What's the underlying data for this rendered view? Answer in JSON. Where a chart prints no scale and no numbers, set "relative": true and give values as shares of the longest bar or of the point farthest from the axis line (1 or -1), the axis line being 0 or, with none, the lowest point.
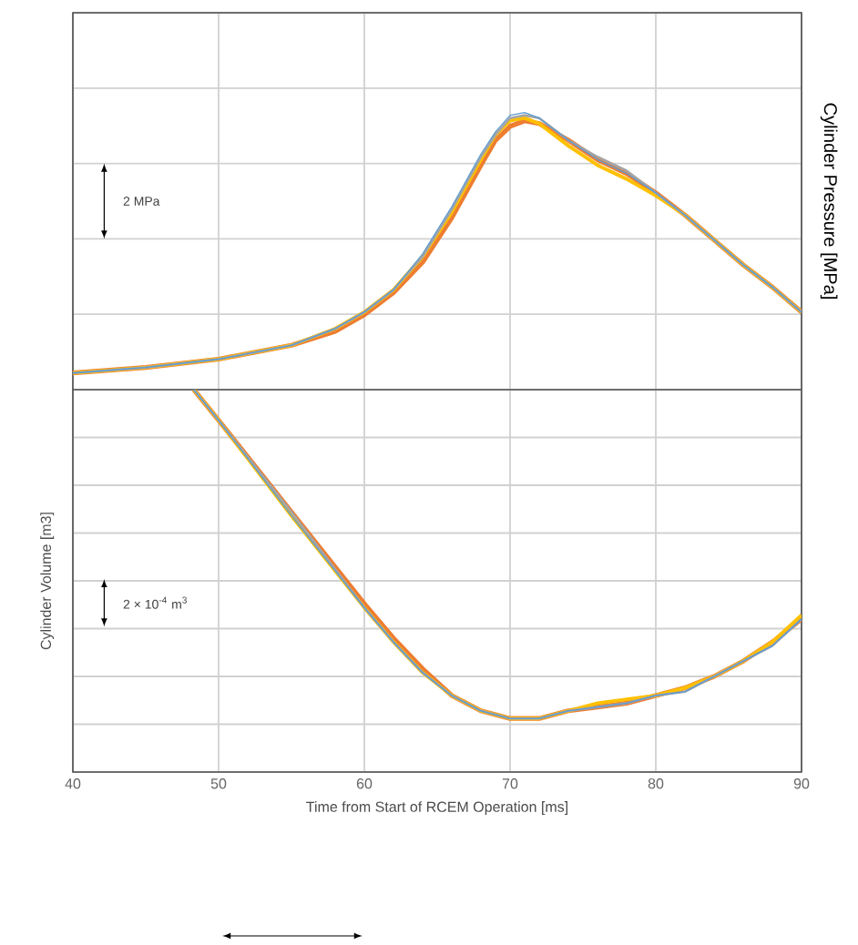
{
  "chart_data": [
    {
      "type": "line",
      "relative": true,
      "ylabel": "Cylinder Pressure [MPa]",
      "xlim": [
        40,
        90
      ],
      "xticks": [
        40,
        50,
        60,
        70,
        80,
        90
      ],
      "tick_labels": false,
      "grid": true,
      "annotations": [
        "2 MPa"
      ],
      "series": [
        {
          "color": "#ed7d31",
          "x": [
            40,
            45,
            50,
            55,
            58,
            60,
            62,
            64,
            66,
            68,
            69,
            70,
            71,
            72,
            74,
            76,
            78,
            80,
            82,
            84,
            86,
            88,
            90
          ],
          "values": [
            0.06,
            0.08,
            0.11,
            0.16,
            0.21,
            0.27,
            0.35,
            0.46,
            0.62,
            0.81,
            0.9,
            0.95,
            0.97,
            0.96,
            0.9,
            0.83,
            0.78,
            0.71,
            0.63,
            0.54,
            0.45,
            0.37,
            0.28
          ]
        },
        {
          "color": "#ffc000",
          "x": [
            40,
            45,
            50,
            55,
            58,
            60,
            62,
            64,
            66,
            68,
            69,
            70,
            71,
            72,
            74,
            76,
            78,
            80,
            82,
            84,
            86,
            88,
            90
          ],
          "values": [
            0.06,
            0.08,
            0.11,
            0.16,
            0.22,
            0.28,
            0.36,
            0.48,
            0.64,
            0.83,
            0.92,
            0.97,
            0.98,
            0.96,
            0.88,
            0.81,
            0.76,
            0.7,
            0.63,
            0.54,
            0.45,
            0.37,
            0.28
          ]
        },
        {
          "color": "#a5a5a5",
          "x": [
            40,
            45,
            50,
            55,
            58,
            60,
            62,
            64,
            66,
            68,
            69,
            70,
            71,
            72,
            74,
            76,
            78,
            80,
            82,
            84,
            86,
            88,
            90
          ],
          "values": [
            0.06,
            0.08,
            0.11,
            0.16,
            0.22,
            0.28,
            0.36,
            0.48,
            0.65,
            0.84,
            0.92,
            0.98,
            0.99,
            0.98,
            0.9,
            0.84,
            0.79,
            0.71,
            0.63,
            0.54,
            0.45,
            0.37,
            0.28
          ]
        },
        {
          "color": "#5b9bd5",
          "x": [
            40,
            45,
            50,
            55,
            58,
            60,
            62,
            64,
            66,
            68,
            69,
            70,
            71,
            72,
            74,
            76,
            78,
            80,
            82,
            84,
            86,
            88,
            90
          ],
          "values": [
            0.06,
            0.08,
            0.11,
            0.16,
            0.22,
            0.28,
            0.36,
            0.49,
            0.66,
            0.85,
            0.93,
            0.99,
            1,
            0.98,
            0.9,
            0.83,
            0.78,
            0.71,
            0.63,
            0.54,
            0.45,
            0.37,
            0.28
          ]
        }
      ]
    },
    {
      "type": "line",
      "relative": true,
      "ylabel": "Cylinder Volume [m3]",
      "xlabel": "Time from Start of RCEM Operation [ms]",
      "xlim": [
        40,
        90
      ],
      "xticks": [
        40,
        50,
        60,
        70,
        80,
        90
      ],
      "tick_labels": "x",
      "grid": true,
      "annotations": [
        "2 × 10$^{-4}$ m$^{3}$"
      ],
      "series": [
        {
          "color": "#ed7d31",
          "x": [
            48.3,
            50,
            55,
            60,
            62,
            64,
            66,
            68,
            70,
            72,
            74,
            76,
            78,
            80,
            82,
            84,
            86,
            88,
            90
          ],
          "values": [
            1,
            0.92,
            0.68,
            0.44,
            0.35,
            0.27,
            0.2,
            0.16,
            0.14,
            0.14,
            0.16,
            0.17,
            0.18,
            0.2,
            0.22,
            0.25,
            0.29,
            0.34,
            0.4
          ]
        },
        {
          "color": "#ffc000",
          "x": [
            48.3,
            50,
            55,
            60,
            62,
            64,
            66,
            68,
            70,
            72,
            74,
            76,
            78,
            80,
            82,
            84,
            86,
            88,
            90
          ],
          "values": [
            1,
            0.92,
            0.67,
            0.43,
            0.34,
            0.26,
            0.2,
            0.16,
            0.14,
            0.14,
            0.16,
            0.18,
            0.19,
            0.2,
            0.22,
            0.25,
            0.29,
            0.34,
            0.41
          ]
        },
        {
          "color": "#a5a5a5",
          "x": [
            48.3,
            50,
            55,
            60,
            62,
            64,
            66,
            68,
            70,
            72,
            74,
            76,
            78,
            80,
            82,
            84,
            86,
            88,
            90
          ],
          "values": [
            1,
            0.92,
            0.68,
            0.43,
            0.34,
            0.26,
            0.2,
            0.16,
            0.14,
            0.14,
            0.16,
            0.17,
            0.18,
            0.2,
            0.21,
            0.25,
            0.29,
            0.33,
            0.4
          ]
        },
        {
          "color": "#5b9bd5",
          "x": [
            48.3,
            50,
            55,
            60,
            62,
            64,
            66,
            68,
            70,
            72,
            74,
            76,
            78,
            80,
            82,
            84,
            86,
            88,
            90
          ],
          "values": [
            1,
            0.92,
            0.67,
            0.43,
            0.34,
            0.26,
            0.2,
            0.16,
            0.14,
            0.14,
            0.16,
            0.17,
            0.18,
            0.2,
            0.21,
            0.25,
            0.29,
            0.33,
            0.4
          ]
        }
      ]
    }
  ]
}
